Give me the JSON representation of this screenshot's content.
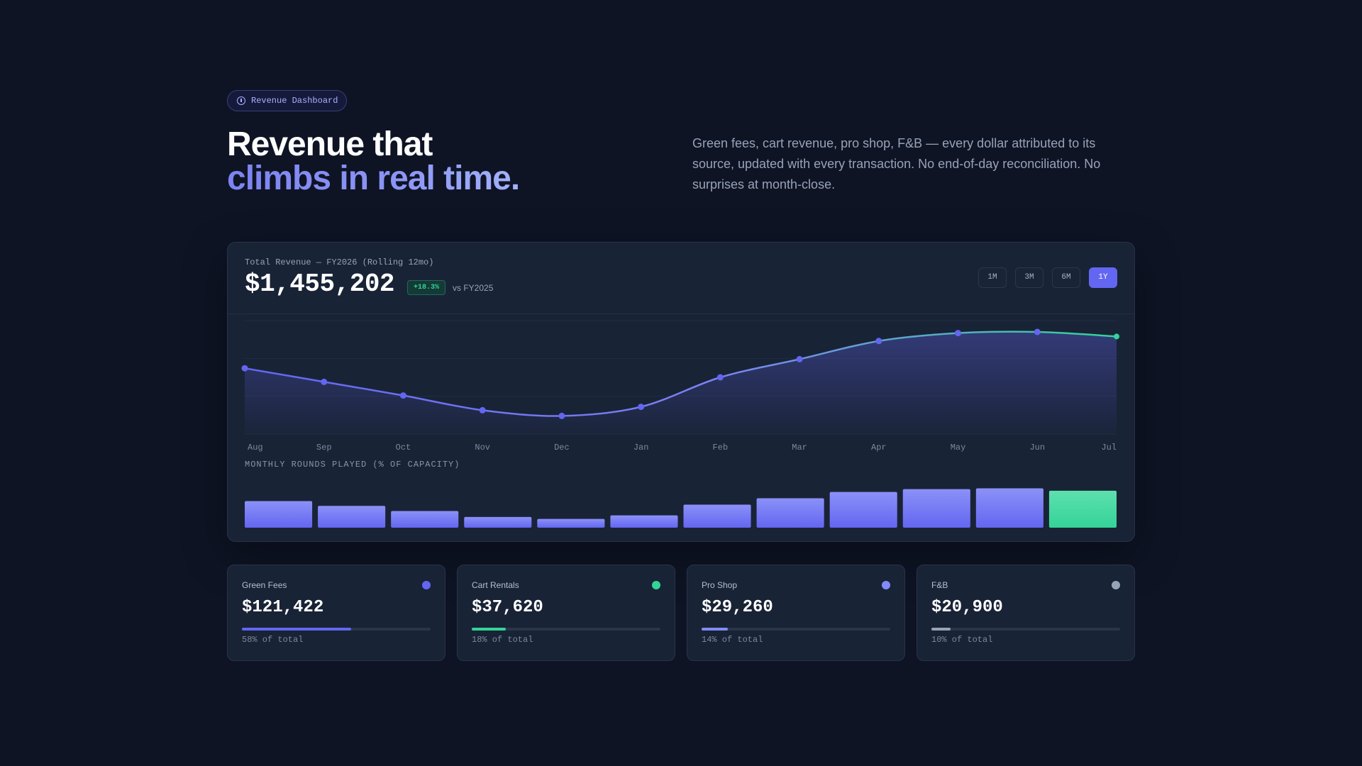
{
  "badge": {
    "label": "Revenue Dashboard",
    "icon": "info-icon"
  },
  "hero": {
    "line1": "Revenue that",
    "line2": "climbs in real time.",
    "description": "Green fees, cart revenue, pro shop, F&B — every dollar attributed to its source, updated with every transaction. No end-of-day reconciliation. No surprises at month-close."
  },
  "card": {
    "label": "Total Revenue — FY2026 (Rolling 12mo)",
    "total": "$1,455,202",
    "growth": "+18.3%",
    "comparison": "vs FY2025",
    "ranges": [
      "1M",
      "3M",
      "6M",
      "1Y"
    ],
    "active_range": "1Y",
    "rounds_label": "MONTHLY ROUNDS PLAYED (% OF CAPACITY)"
  },
  "chart_data": [
    {
      "type": "area",
      "title": "",
      "xlabel": "",
      "ylabel": "",
      "categories": [
        "Aug",
        "Sep",
        "Oct",
        "Nov",
        "Dec",
        "Jan",
        "Feb",
        "Mar",
        "Apr",
        "May",
        "Jun",
        "Jul"
      ],
      "values": [
        58,
        46,
        34,
        21,
        16,
        24,
        50,
        66,
        82,
        89,
        90,
        86
      ],
      "ylim": [
        0,
        100
      ],
      "grid": true,
      "colors": {
        "line_start": "#6366f1",
        "line_end": "#34d399",
        "points": "#6366f1"
      }
    },
    {
      "type": "bar",
      "title": "MONTHLY ROUNDS PLAYED (% OF CAPACITY)",
      "categories": [
        "Aug",
        "Sep",
        "Oct",
        "Nov",
        "Dec",
        "Jan",
        "Feb",
        "Mar",
        "Apr",
        "May",
        "Jun",
        "Jul"
      ],
      "values": [
        67,
        55,
        42,
        27,
        22,
        31,
        58,
        74,
        90,
        97,
        99,
        93
      ],
      "ylim": [
        0,
        100
      ],
      "colors": {
        "bar": "#6366f1",
        "highlight": "#34d399"
      }
    }
  ],
  "stats": [
    {
      "name": "Green Fees",
      "value": "$121,422",
      "pct_label": "58% of total",
      "share": 0.58,
      "color": "#6366f1"
    },
    {
      "name": "Cart Rentals",
      "value": "$37,620",
      "pct_label": "18% of total",
      "share": 0.18,
      "color": "#34d399"
    },
    {
      "name": "Pro Shop",
      "value": "$29,260",
      "pct_label": "14% of total",
      "share": 0.14,
      "color": "#818cf8"
    },
    {
      "name": "F&B",
      "value": "$20,900",
      "pct_label": "10% of total",
      "share": 0.1,
      "color": "#94a3b8"
    }
  ]
}
